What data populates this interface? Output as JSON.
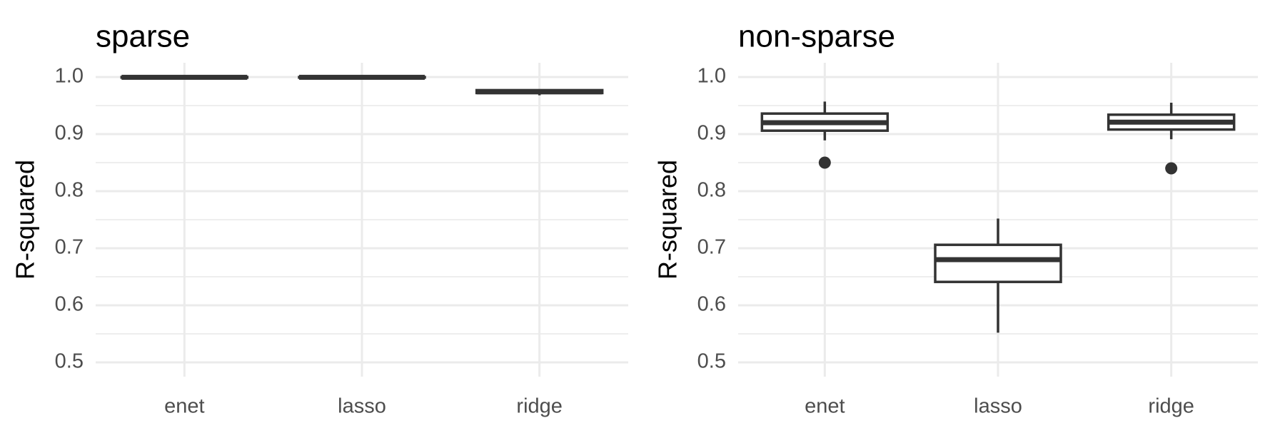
{
  "chart_data": [
    {
      "type": "box",
      "title": "sparse",
      "ylabel": "R-squared",
      "xlabel": "",
      "ylim": [
        0.5,
        1.0
      ],
      "yticks": [
        "0.5",
        "0.6",
        "0.7",
        "0.8",
        "0.9",
        "1.0"
      ],
      "yticks_values": [
        0.5,
        0.6,
        0.7,
        0.8,
        0.9,
        1.0
      ],
      "grid": true,
      "categories": [
        "enet",
        "lasso",
        "ridge"
      ],
      "boxes": [
        {
          "category": "enet",
          "min": 0.999,
          "q1": 0.999,
          "median": 0.9995,
          "q3": 1.0,
          "max": 1.0,
          "outliers": []
        },
        {
          "category": "lasso",
          "min": 0.999,
          "q1": 0.999,
          "median": 0.9995,
          "q3": 1.0,
          "max": 1.0,
          "outliers": []
        },
        {
          "category": "ridge",
          "min": 0.968,
          "q1": 0.972,
          "median": 0.974,
          "q3": 0.977,
          "max": 0.978,
          "outliers": []
        }
      ]
    },
    {
      "type": "box",
      "title": "non-sparse",
      "ylabel": "R-squared",
      "xlabel": "",
      "ylim": [
        0.5,
        1.0
      ],
      "yticks": [
        "0.5",
        "0.6",
        "0.7",
        "0.8",
        "0.9",
        "1.0"
      ],
      "yticks_values": [
        0.5,
        0.6,
        0.7,
        0.8,
        0.9,
        1.0
      ],
      "grid": true,
      "categories": [
        "enet",
        "lasso",
        "ridge"
      ],
      "boxes": [
        {
          "category": "enet",
          "min": 0.889,
          "q1": 0.906,
          "median": 0.92,
          "q3": 0.936,
          "max": 0.957,
          "outliers": [
            0.85
          ]
        },
        {
          "category": "lasso",
          "min": 0.552,
          "q1": 0.641,
          "median": 0.68,
          "q3": 0.706,
          "max": 0.752,
          "outliers": []
        },
        {
          "category": "ridge",
          "min": 0.891,
          "q1": 0.908,
          "median": 0.921,
          "q3": 0.934,
          "max": 0.955,
          "outliers": [
            0.84
          ]
        }
      ]
    }
  ]
}
